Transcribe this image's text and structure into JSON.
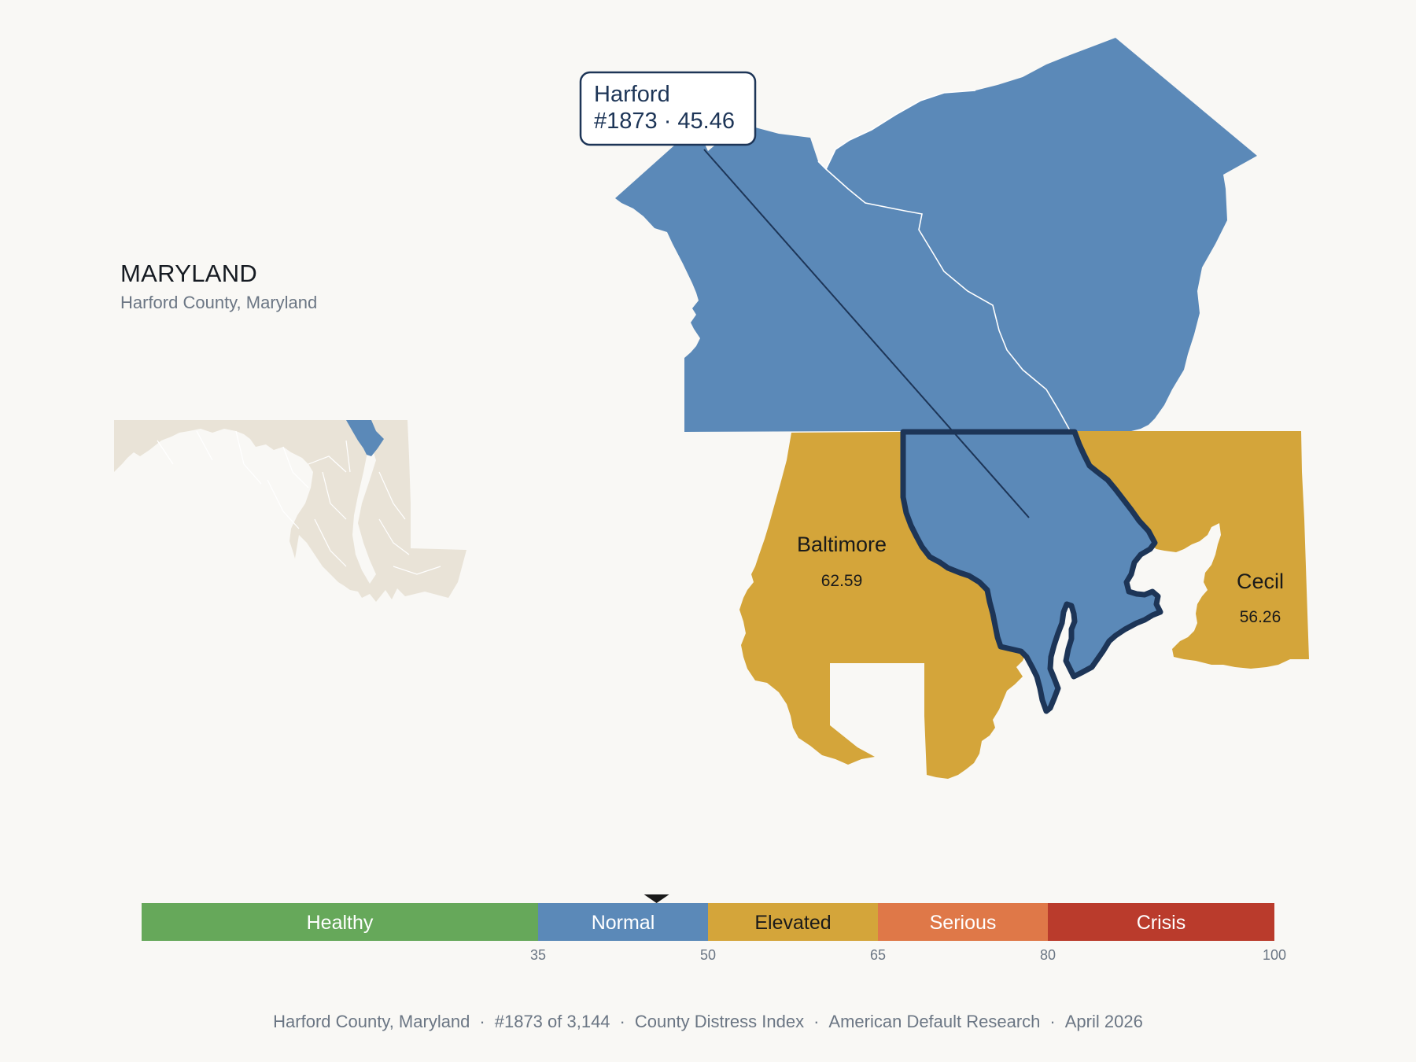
{
  "header": {
    "state": "MARYLAND",
    "subtitle": "Harford County, Maryland"
  },
  "tooltip": {
    "name": "Harford",
    "detail": "#1873 · 45.46"
  },
  "counties": {
    "focus": {
      "name": "Harford",
      "score": 45.46,
      "band": "Normal"
    },
    "neighbors": [
      {
        "name": "Baltimore",
        "value": "62.59",
        "band": "Elevated"
      },
      {
        "name": "Cecil",
        "value": "56.26",
        "band": "Elevated"
      }
    ],
    "pennsylvania_neighbors_band": "Normal"
  },
  "legend": {
    "bands": [
      {
        "label": "Healthy",
        "from": 0,
        "to": 35,
        "color": "#66a85a"
      },
      {
        "label": "Normal",
        "from": 35,
        "to": 50,
        "color": "#5b89b8"
      },
      {
        "label": "Elevated",
        "from": 50,
        "to": 65,
        "color": "#d4a53a"
      },
      {
        "label": "Serious",
        "from": 65,
        "to": 80,
        "color": "#df7848"
      },
      {
        "label": "Crisis",
        "from": 80,
        "to": 100,
        "color": "#ba3b2c"
      }
    ],
    "ticks": [
      "35",
      "50",
      "65",
      "80",
      "100"
    ],
    "marker_value": 45.46
  },
  "colors": {
    "background": "#f9f8f5",
    "inset_land": "#e9e3d7",
    "focus_outline": "#1d3557"
  },
  "footer": {
    "items": [
      "Harford County, Maryland",
      "#1873 of 3,144",
      "County Distress Index",
      "American Default Research",
      "April 2026"
    ]
  }
}
